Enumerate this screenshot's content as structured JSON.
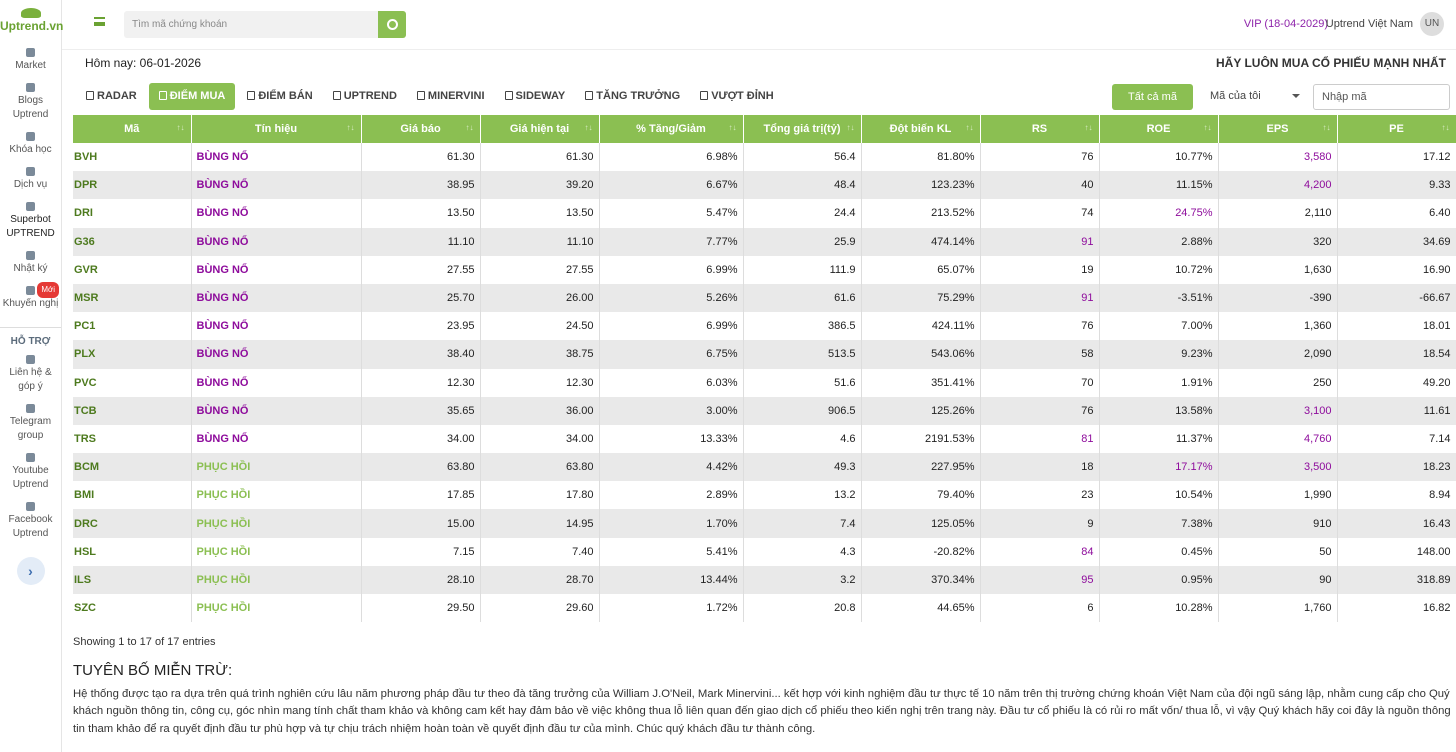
{
  "sidebar": {
    "logo": "Uptrend.vn",
    "items": [
      "Market",
      "Blogs Uptrend",
      "Khóa học",
      "Dịch vụ",
      "Superbot UPTREND",
      "Nhật ký",
      "Khuyến nghị"
    ],
    "badge": "Mới",
    "section": "HỖ TRỢ",
    "support": [
      "Liên hệ & góp ý",
      "Telegram group",
      "Youtube Uptrend",
      "Facebook Uptrend"
    ]
  },
  "header": {
    "search_placeholder": "Tìm mã chứng khoán",
    "vip": "VIP (18-04-2029)",
    "user": "Uptrend Việt Nam",
    "avatar": "UN"
  },
  "today": "Hôm nay: 06-01-2026",
  "slogan": "HÃY LUÔN MUA CỔ PHIẾU MẠNH NHẤT",
  "tabs": [
    "RADAR",
    "ĐIỂM MUA",
    "ĐIỂM BÁN",
    "UPTREND",
    "MINERVINI",
    "SIDEWAY",
    "TĂNG TRƯỞNG",
    "VƯỢT ĐỈNH"
  ],
  "active_tab": 1,
  "filters": {
    "all": "Tất cả mã",
    "mine": "Mã của tôi",
    "input_placeholder": "Nhập mã"
  },
  "table": {
    "columns": [
      "Mã",
      "Tín hiệu",
      "Giá báo",
      "Giá hiện tại",
      "% Tăng/Giảm",
      "Tổng giá trị(tỷ)",
      "Đột biến KL",
      "RS",
      "ROE",
      "EPS",
      "PE"
    ],
    "rows": [
      [
        "BVH",
        "BÙNG NỔ",
        "61.30",
        "61.30",
        "6.98%",
        "56.4",
        "81.80%",
        "76",
        "10.77%",
        "3,580",
        "17.12"
      ],
      [
        "DPR",
        "BÙNG NỔ",
        "38.95",
        "39.20",
        "6.67%",
        "48.4",
        "123.23%",
        "40",
        "11.15%",
        "4,200",
        "9.33"
      ],
      [
        "DRI",
        "BÙNG NỔ",
        "13.50",
        "13.50",
        "5.47%",
        "24.4",
        "213.52%",
        "74",
        "24.75%",
        "2,110",
        "6.40"
      ],
      [
        "G36",
        "BÙNG NỔ",
        "11.10",
        "11.10",
        "7.77%",
        "25.9",
        "474.14%",
        "91",
        "2.88%",
        "320",
        "34.69"
      ],
      [
        "GVR",
        "BÙNG NỔ",
        "27.55",
        "27.55",
        "6.99%",
        "111.9",
        "65.07%",
        "19",
        "10.72%",
        "1,630",
        "16.90"
      ],
      [
        "MSR",
        "BÙNG NỔ",
        "25.70",
        "26.00",
        "5.26%",
        "61.6",
        "75.29%",
        "91",
        "-3.51%",
        "-390",
        "-66.67"
      ],
      [
        "PC1",
        "BÙNG NỔ",
        "23.95",
        "24.50",
        "6.99%",
        "386.5",
        "424.11%",
        "76",
        "7.00%",
        "1,360",
        "18.01"
      ],
      [
        "PLX",
        "BÙNG NỔ",
        "38.40",
        "38.75",
        "6.75%",
        "513.5",
        "543.06%",
        "58",
        "9.23%",
        "2,090",
        "18.54"
      ],
      [
        "PVC",
        "BÙNG NỔ",
        "12.30",
        "12.30",
        "6.03%",
        "51.6",
        "351.41%",
        "70",
        "1.91%",
        "250",
        "49.20"
      ],
      [
        "TCB",
        "BÙNG NỔ",
        "35.65",
        "36.00",
        "3.00%",
        "906.5",
        "125.26%",
        "76",
        "13.58%",
        "3,100",
        "11.61"
      ],
      [
        "TRS",
        "BÙNG NỔ",
        "34.00",
        "34.00",
        "13.33%",
        "4.6",
        "2191.53%",
        "81",
        "11.37%",
        "4,760",
        "7.14"
      ],
      [
        "BCM",
        "PHỤC HỒI",
        "63.80",
        "63.80",
        "4.42%",
        "49.3",
        "227.95%",
        "18",
        "17.17%",
        "3,500",
        "18.23"
      ],
      [
        "BMI",
        "PHỤC HỒI",
        "17.85",
        "17.80",
        "2.89%",
        "13.2",
        "79.40%",
        "23",
        "10.54%",
        "1,990",
        "8.94"
      ],
      [
        "DRC",
        "PHỤC HỒI",
        "15.00",
        "14.95",
        "1.70%",
        "7.4",
        "125.05%",
        "9",
        "7.38%",
        "910",
        "16.43"
      ],
      [
        "HSL",
        "PHỤC HỒI",
        "7.15",
        "7.40",
        "5.41%",
        "4.3",
        "-20.82%",
        "84",
        "0.45%",
        "50",
        "148.00"
      ],
      [
        "ILS",
        "PHỤC HỒI",
        "28.10",
        "28.70",
        "13.44%",
        "3.2",
        "370.34%",
        "95",
        "0.95%",
        "90",
        "318.89"
      ],
      [
        "SZC",
        "PHỤC HỒI",
        "29.50",
        "29.60",
        "1.72%",
        "20.8",
        "44.65%",
        "6",
        "10.28%",
        "1,760",
        "16.82"
      ]
    ]
  },
  "entries": "Showing 1 to 17 of 17 entries",
  "disclaimer": {
    "title": "TUYÊN BỐ MIỄN TRỪ:",
    "text": "Hệ thống được tạo ra dựa trên quá trình nghiên cứu lâu năm phương pháp đầu tư theo đà tăng trưởng của William J.O'Neil, Mark Minervini... kết hợp với kinh nghiệm đầu tư thực tế 10 năm trên thị trường chứng khoán Việt Nam của đội ngũ sáng lập, nhằm cung cấp cho Quý khách nguồn thông tin, công cụ, góc nhìn mang tính chất tham khảo và không cam kết hay đảm bảo về việc không thua lỗ liên quan đến giao dịch cổ phiếu theo kiến nghị trên trang này. Đầu tư cổ phiếu là có rủi ro mất vốn/ thua lỗ, vì vậy Quý khách hãy coi đây là nguồn thông tin tham khảo để ra quyết định đầu tư phù hợp và tự chịu trách nhiệm hoàn toàn về quyết định đầu tư của mình. Chúc quý khách đầu tư thành công."
  }
}
